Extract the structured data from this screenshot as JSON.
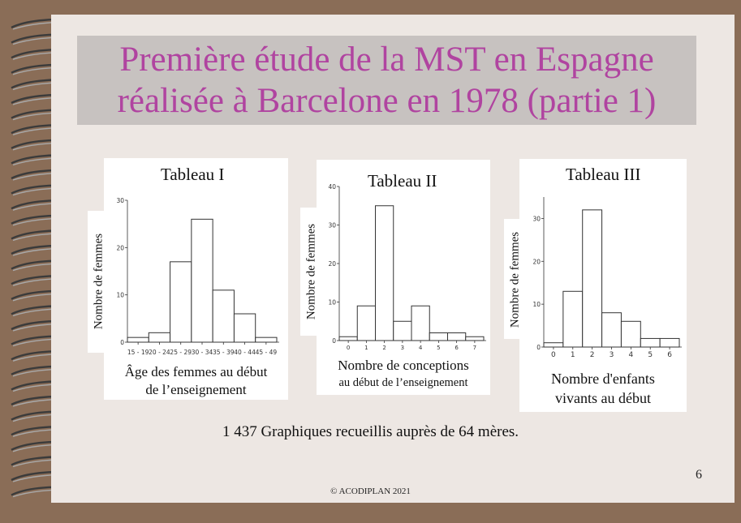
{
  "slide": {
    "title_line1": "Première étude de la MST en Espagne",
    "title_line2": "réalisée à Barcelone en 1978 (partie 1)",
    "caption": "1 437 Graphiques  recueillis auprès de 64 mères.",
    "copyright": "© ACODIPLAN 2021",
    "page_number": "6"
  },
  "chart_data": [
    {
      "type": "bar",
      "title": "Tableau I",
      "ylabel": "Nombre de femmes",
      "xlabel_line1": "Âge des femmes au début",
      "xlabel_line2": "de l’enseignement",
      "categories": [
        "15 - 19",
        "20 - 24",
        "25 - 29",
        "30 - 34",
        "35 - 39",
        "40 - 44",
        "45 - 49"
      ],
      "values": [
        1,
        2,
        17,
        26,
        11,
        6,
        1
      ],
      "ylim": [
        0,
        30
      ],
      "yticks": [
        "0",
        "10",
        "20",
        "30"
      ],
      "yticks_values": [
        0,
        10,
        20,
        30
      ]
    },
    {
      "type": "bar",
      "title": "Tableau II",
      "ylabel": "Nombre de femmes",
      "xlabel_line1": "Nombre de conceptions",
      "xlabel_line2": "au début de l’enseignement",
      "categories": [
        "0",
        "1",
        "2",
        "3",
        "4",
        "5",
        "6",
        "7"
      ],
      "values": [
        1,
        9,
        35,
        5,
        9,
        2,
        2,
        1
      ],
      "ylim": [
        0,
        40
      ],
      "yticks": [
        "0",
        "10",
        "20",
        "30",
        "40"
      ],
      "yticks_values": [
        0,
        10,
        20,
        30,
        40
      ]
    },
    {
      "type": "bar",
      "title": "Tableau III",
      "ylabel": "Nombre de femmes",
      "xlabel_line1": "Nombre d'enfants",
      "xlabel_line2": "vivants au début",
      "categories": [
        "0",
        "1",
        "2",
        "3",
        "4",
        "5",
        "6"
      ],
      "values": [
        1,
        13,
        32,
        8,
        6,
        2,
        2
      ],
      "ylim": [
        0,
        35
      ],
      "yticks": [
        "0",
        "10",
        "20",
        "30"
      ],
      "yticks_values": [
        0,
        10,
        20,
        30
      ]
    }
  ]
}
